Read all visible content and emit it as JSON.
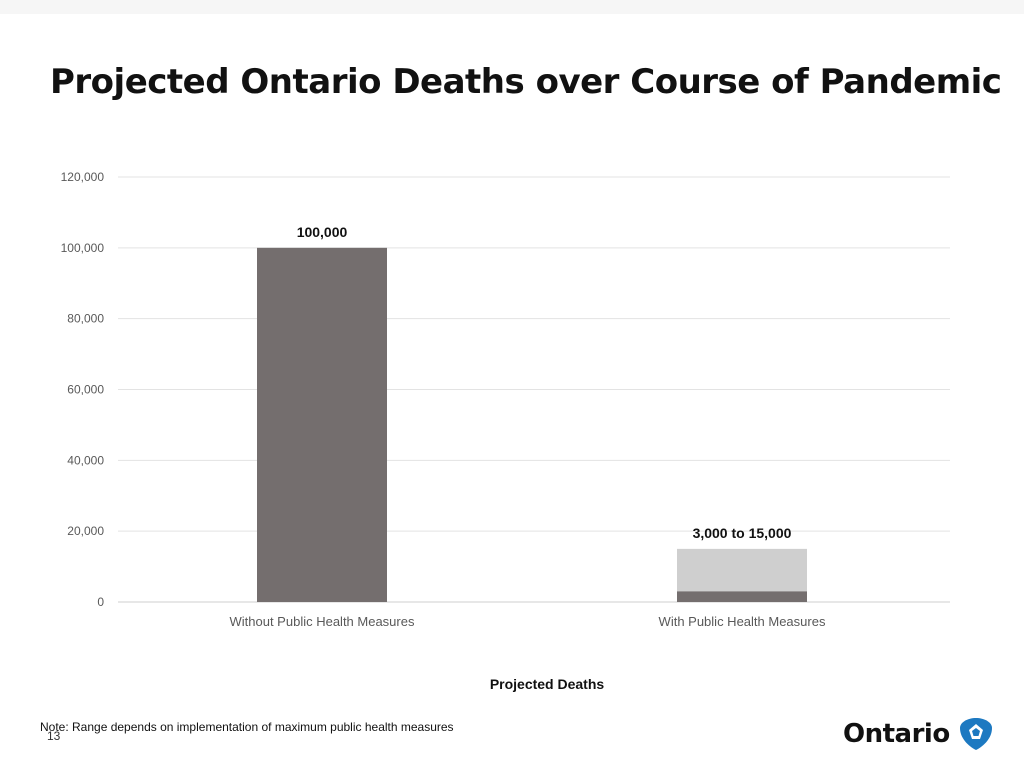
{
  "slide": {
    "title": "Projected Ontario Deaths over Course of Pandemic",
    "note": "Note: Range depends on implementation of maximum public health measures",
    "page_number": "13",
    "logo_text": "Ontario",
    "logo_icon": "ontario-trillium-logo"
  },
  "colors": {
    "bar_primary": "#746e6e",
    "bar_range": "#cfcfcf",
    "gridline": "#e3e3e3",
    "logo_blue": "#1d79c1"
  },
  "chart_data": {
    "type": "bar",
    "title": "Projected Ontario Deaths over Course of Pandemic",
    "xlabel": "Projected Deaths",
    "ylabel": "",
    "ylim": [
      0,
      120000
    ],
    "yticks": [
      0,
      20000,
      40000,
      60000,
      80000,
      100000,
      120000
    ],
    "ytick_labels": [
      "0",
      "20,000",
      "40,000",
      "60,000",
      "80,000",
      "100,000",
      "120,000"
    ],
    "grid": true,
    "categories": [
      "Without Public Health Measures",
      "With Public Health Measures"
    ],
    "bars": [
      {
        "category": "Without Public Health Measures",
        "value": 100000,
        "label": "100,000"
      },
      {
        "category": "With Public Health Measures",
        "value": 3000,
        "range_max": 15000,
        "label": "3,000 to 15,000"
      }
    ]
  }
}
